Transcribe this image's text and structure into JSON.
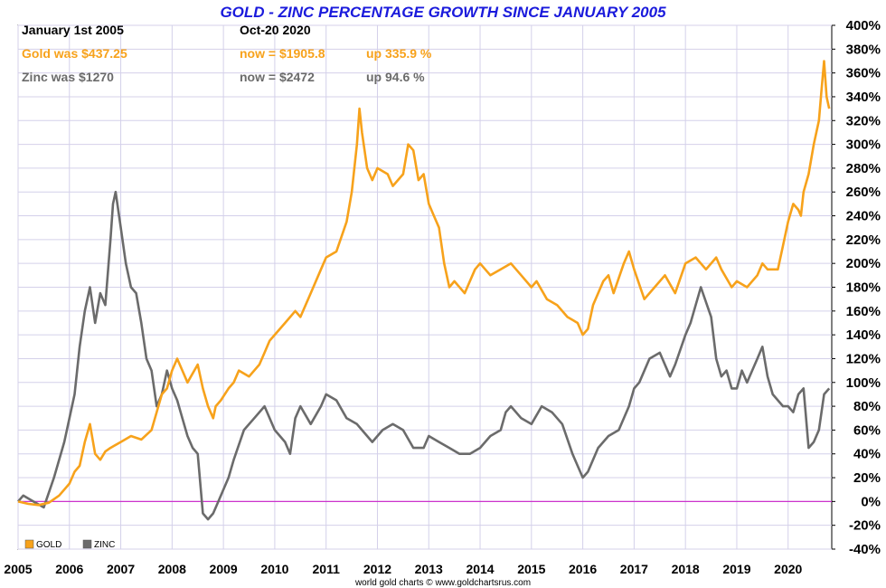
{
  "chart_data": {
    "type": "line",
    "title": "GOLD - ZINC PERCENTAGE GROWTH SINCE JANUARY 2005",
    "info": {
      "start_label": "January 1st 2005",
      "end_label": "Oct-20  2020",
      "gold_was": "Gold was $437.25",
      "gold_now": "now = $1905.8",
      "gold_up": "up 335.9 %",
      "zinc_was": "Zinc was $1270",
      "zinc_now": "now = $2472",
      "zinc_up": "up 94.6 %"
    },
    "colors": {
      "gold": "#f7a21b",
      "zinc": "#6b6b6b",
      "title": "#1a1adc",
      "zero_line": "#cc33cc",
      "grid": "#d4d0ea"
    },
    "xlim": [
      2005,
      2020.85
    ],
    "ylim": [
      -40,
      400
    ],
    "x_ticks": [
      "2005",
      "2006",
      "2007",
      "2008",
      "2009",
      "2010",
      "2011",
      "2012",
      "2013",
      "2014",
      "2015",
      "2016",
      "2017",
      "2018",
      "2019",
      "2020"
    ],
    "y_ticks": [
      "400%",
      "380%",
      "360%",
      "340%",
      "320%",
      "300%",
      "280%",
      "260%",
      "240%",
      "220%",
      "200%",
      "180%",
      "160%",
      "140%",
      "120%",
      "100%",
      "80%",
      "60%",
      "40%",
      "20%",
      "0%",
      "-20%",
      "-40%"
    ],
    "legend": [
      "GOLD",
      "ZINC"
    ],
    "legend_position": "bottom-left",
    "source": "world gold charts © www.goldchartsrus.com",
    "series": [
      {
        "name": "GOLD",
        "x": [
          2005,
          2005.2,
          2005.4,
          2005.6,
          2005.8,
          2006.0,
          2006.1,
          2006.2,
          2006.3,
          2006.4,
          2006.5,
          2006.6,
          2006.7,
          2006.8,
          2007.0,
          2007.2,
          2007.4,
          2007.6,
          2007.7,
          2007.8,
          2007.9,
          2008.0,
          2008.1,
          2008.2,
          2008.3,
          2008.5,
          2008.6,
          2008.7,
          2008.8,
          2008.85,
          2008.95,
          2009.1,
          2009.2,
          2009.3,
          2009.5,
          2009.7,
          2009.8,
          2009.9,
          2010.0,
          2010.2,
          2010.4,
          2010.5,
          2010.7,
          2010.9,
          2011.0,
          2011.2,
          2011.4,
          2011.5,
          2011.6,
          2011.65,
          2011.7,
          2011.8,
          2011.9,
          2012.0,
          2012.2,
          2012.3,
          2012.5,
          2012.6,
          2012.7,
          2012.8,
          2012.9,
          2013.0,
          2013.1,
          2013.2,
          2013.3,
          2013.4,
          2013.5,
          2013.7,
          2013.9,
          2014.0,
          2014.2,
          2014.4,
          2014.6,
          2014.8,
          2015.0,
          2015.1,
          2015.3,
          2015.5,
          2015.7,
          2015.9,
          2016.0,
          2016.1,
          2016.2,
          2016.4,
          2016.5,
          2016.6,
          2016.8,
          2016.9,
          2017.0,
          2017.2,
          2017.4,
          2017.6,
          2017.8,
          2018.0,
          2018.2,
          2018.4,
          2018.6,
          2018.7,
          2018.9,
          2019.0,
          2019.2,
          2019.4,
          2019.5,
          2019.6,
          2019.8,
          2019.9,
          2020.0,
          2020.1,
          2020.2,
          2020.25,
          2020.3,
          2020.4,
          2020.5,
          2020.6,
          2020.65,
          2020.7,
          2020.75,
          2020.8
        ],
        "values": [
          0,
          -2,
          -3,
          -1,
          5,
          15,
          25,
          30,
          50,
          65,
          40,
          35,
          42,
          45,
          50,
          55,
          52,
          60,
          75,
          90,
          95,
          110,
          120,
          110,
          100,
          115,
          95,
          80,
          70,
          80,
          85,
          95,
          100,
          110,
          105,
          115,
          125,
          135,
          140,
          150,
          160,
          155,
          175,
          195,
          205,
          210,
          235,
          260,
          300,
          330,
          310,
          280,
          270,
          280,
          275,
          265,
          275,
          300,
          295,
          270,
          275,
          250,
          240,
          230,
          200,
          180,
          185,
          175,
          195,
          200,
          190,
          195,
          200,
          190,
          180,
          185,
          170,
          165,
          155,
          150,
          140,
          145,
          165,
          185,
          190,
          175,
          200,
          210,
          195,
          170,
          180,
          190,
          175,
          200,
          205,
          195,
          205,
          195,
          180,
          185,
          180,
          190,
          200,
          195,
          195,
          215,
          235,
          250,
          245,
          240,
          260,
          275,
          300,
          320,
          345,
          370,
          340,
          330
        ]
      },
      {
        "name": "ZINC",
        "x": [
          2005,
          2005.1,
          2005.3,
          2005.5,
          2005.7,
          2005.9,
          2006.0,
          2006.1,
          2006.2,
          2006.3,
          2006.4,
          2006.5,
          2006.6,
          2006.7,
          2006.8,
          2006.85,
          2006.9,
          2007.0,
          2007.1,
          2007.2,
          2007.3,
          2007.4,
          2007.5,
          2007.6,
          2007.7,
          2007.8,
          2007.9,
          2008.0,
          2008.1,
          2008.2,
          2008.3,
          2008.4,
          2008.5,
          2008.6,
          2008.7,
          2008.8,
          2008.9,
          2009.0,
          2009.1,
          2009.2,
          2009.4,
          2009.6,
          2009.8,
          2010.0,
          2010.2,
          2010.3,
          2010.4,
          2010.5,
          2010.7,
          2010.9,
          2011.0,
          2011.2,
          2011.4,
          2011.6,
          2011.7,
          2011.8,
          2011.9,
          2012.0,
          2012.1,
          2012.3,
          2012.5,
          2012.7,
          2012.9,
          2013.0,
          2013.2,
          2013.4,
          2013.6,
          2013.8,
          2014.0,
          2014.2,
          2014.4,
          2014.5,
          2014.6,
          2014.8,
          2015.0,
          2015.2,
          2015.4,
          2015.6,
          2015.8,
          2015.9,
          2016.0,
          2016.1,
          2016.3,
          2016.5,
          2016.7,
          2016.9,
          2017.0,
          2017.1,
          2017.3,
          2017.5,
          2017.7,
          2017.8,
          2018.0,
          2018.1,
          2018.2,
          2018.3,
          2018.5,
          2018.6,
          2018.7,
          2018.8,
          2018.9,
          2019.0,
          2019.1,
          2019.2,
          2019.3,
          2019.4,
          2019.5,
          2019.6,
          2019.7,
          2019.8,
          2019.9,
          2020.0,
          2020.1,
          2020.2,
          2020.3,
          2020.4,
          2020.5,
          2020.6,
          2020.7,
          2020.8
        ],
        "values": [
          0,
          5,
          0,
          -5,
          20,
          50,
          70,
          90,
          130,
          160,
          180,
          150,
          175,
          165,
          220,
          250,
          260,
          230,
          200,
          180,
          175,
          150,
          120,
          110,
          80,
          90,
          110,
          95,
          85,
          70,
          55,
          45,
          40,
          -10,
          -15,
          -10,
          0,
          10,
          20,
          35,
          60,
          70,
          80,
          60,
          50,
          40,
          70,
          80,
          65,
          80,
          90,
          85,
          70,
          65,
          60,
          55,
          50,
          55,
          60,
          65,
          60,
          45,
          45,
          55,
          50,
          45,
          40,
          40,
          45,
          55,
          60,
          75,
          80,
          70,
          65,
          80,
          75,
          65,
          40,
          30,
          20,
          25,
          45,
          55,
          60,
          80,
          95,
          100,
          120,
          125,
          105,
          115,
          140,
          150,
          165,
          180,
          155,
          120,
          105,
          110,
          95,
          95,
          110,
          100,
          110,
          120,
          130,
          105,
          90,
          85,
          80,
          80,
          75,
          90,
          95,
          45,
          50,
          60,
          90,
          95
        ]
      }
    ]
  }
}
